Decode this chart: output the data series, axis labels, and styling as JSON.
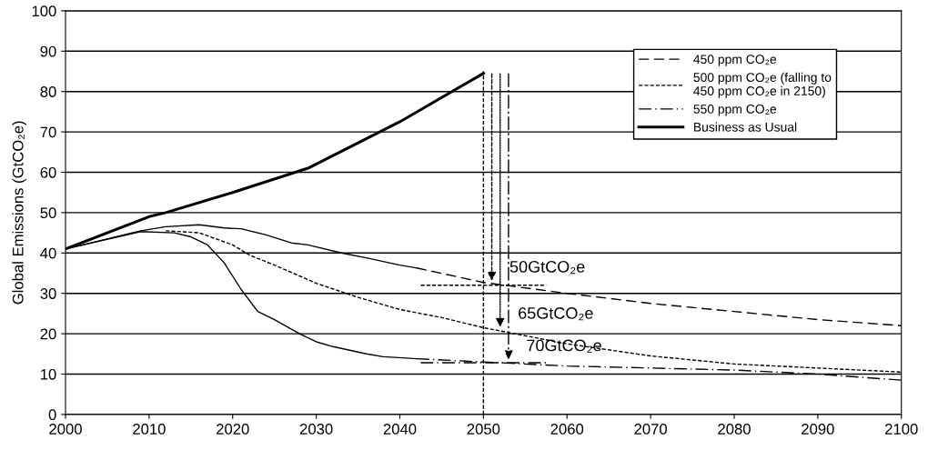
{
  "chart_data": {
    "type": "line",
    "ylabel": "Global Emissions (GtCO₂e)",
    "xlim": [
      2000,
      2100
    ],
    "xticks": [
      2000,
      2010,
      2020,
      2030,
      2040,
      2050,
      2060,
      2070,
      2080,
      2090,
      2100
    ],
    "ylim": [
      0,
      100
    ],
    "yticks": [
      0,
      10,
      20,
      30,
      40,
      50,
      60,
      70,
      80,
      90,
      100
    ],
    "grid": "y",
    "legend": "top right",
    "series": [
      {
        "name": "450 ppm CO₂e",
        "color": "#000000",
        "line_style": "dashed",
        "x": [
          2042,
          2050,
          2060,
          2070,
          2080,
          2090,
          2100
        ],
        "values": [
          36.3,
          32.7,
          30,
          27.5,
          25.5,
          23.5,
          22
        ]
      },
      {
        "name": "500 ppm CO₂e (falling to\n450 ppm CO₂e in 2150)",
        "color": "#000000",
        "line_style": "short_dashed",
        "x": [
          2012,
          2016,
          2020,
          2022,
          2025,
          2030,
          2035,
          2040,
          2045,
          2050,
          2060,
          2070,
          2080,
          2090,
          2100
        ],
        "values": [
          45.5,
          45,
          42,
          39.5,
          37,
          32.5,
          29,
          26,
          24,
          21.5,
          17.5,
          14.5,
          12.5,
          11.5,
          10.5
        ]
      },
      {
        "name": "550 ppm CO₂e",
        "color": "#000000",
        "line_style": "dashdot",
        "x": [
          2042,
          2050,
          2060,
          2070,
          2080,
          2090,
          2100
        ],
        "values": [
          13.8,
          13,
          12,
          11.5,
          11,
          10,
          8.5
        ]
      },
      {
        "name": "Business as Usual",
        "color": "#000000",
        "line_style": "solid",
        "x": [
          2000,
          2010,
          2012,
          2020,
          2029,
          2040,
          2050
        ],
        "values": [
          41,
          49,
          50,
          55,
          61,
          72.5,
          84.5
        ]
      },
      {
        "color": "#000000",
        "line_style": "solid",
        "x": [
          2000,
          2009,
          2012,
          2016,
          2019,
          2021,
          2024,
          2027,
          2029,
          2033,
          2036,
          2040,
          2042
        ],
        "values": [
          41,
          45.5,
          46.5,
          47,
          46.2,
          46,
          44.5,
          42.5,
          42,
          40,
          38.8,
          37,
          36.3
        ]
      },
      {
        "color": "#000000",
        "line_style": "solid",
        "x": [
          2000,
          2009,
          2013,
          2015,
          2017,
          2019,
          2021,
          2023,
          2025,
          2028,
          2030,
          2032,
          2036,
          2038,
          2042
        ],
        "values": [
          41,
          45.3,
          45,
          44,
          42,
          37.5,
          31,
          25.5,
          23.5,
          20,
          18,
          16.8,
          15,
          14.3,
          13.8
        ]
      },
      {
        "color": "#000000",
        "line_style": "short_dashed",
        "x": [
          2050,
          2050
        ],
        "values": [
          0,
          85
        ]
      },
      {
        "color": "#000000",
        "line_style": "short_dashed",
        "x": [
          2042.5,
          2057.5
        ],
        "values": [
          32,
          32
        ]
      },
      {
        "color": "#000000",
        "line_style": "dashdot",
        "x": [
          2042.5,
          2057.5
        ],
        "values": [
          12.8,
          12.8
        ]
      }
    ],
    "annotations": [
      {
        "text": "50GtCO₂e",
        "x": 2051,
        "y": 32.5
      },
      {
        "text": "65GtCO₂e",
        "x": 2052,
        "y": 21
      },
      {
        "text": "70GtCO₂e",
        "x": 2053,
        "y": 13
      }
    ]
  }
}
